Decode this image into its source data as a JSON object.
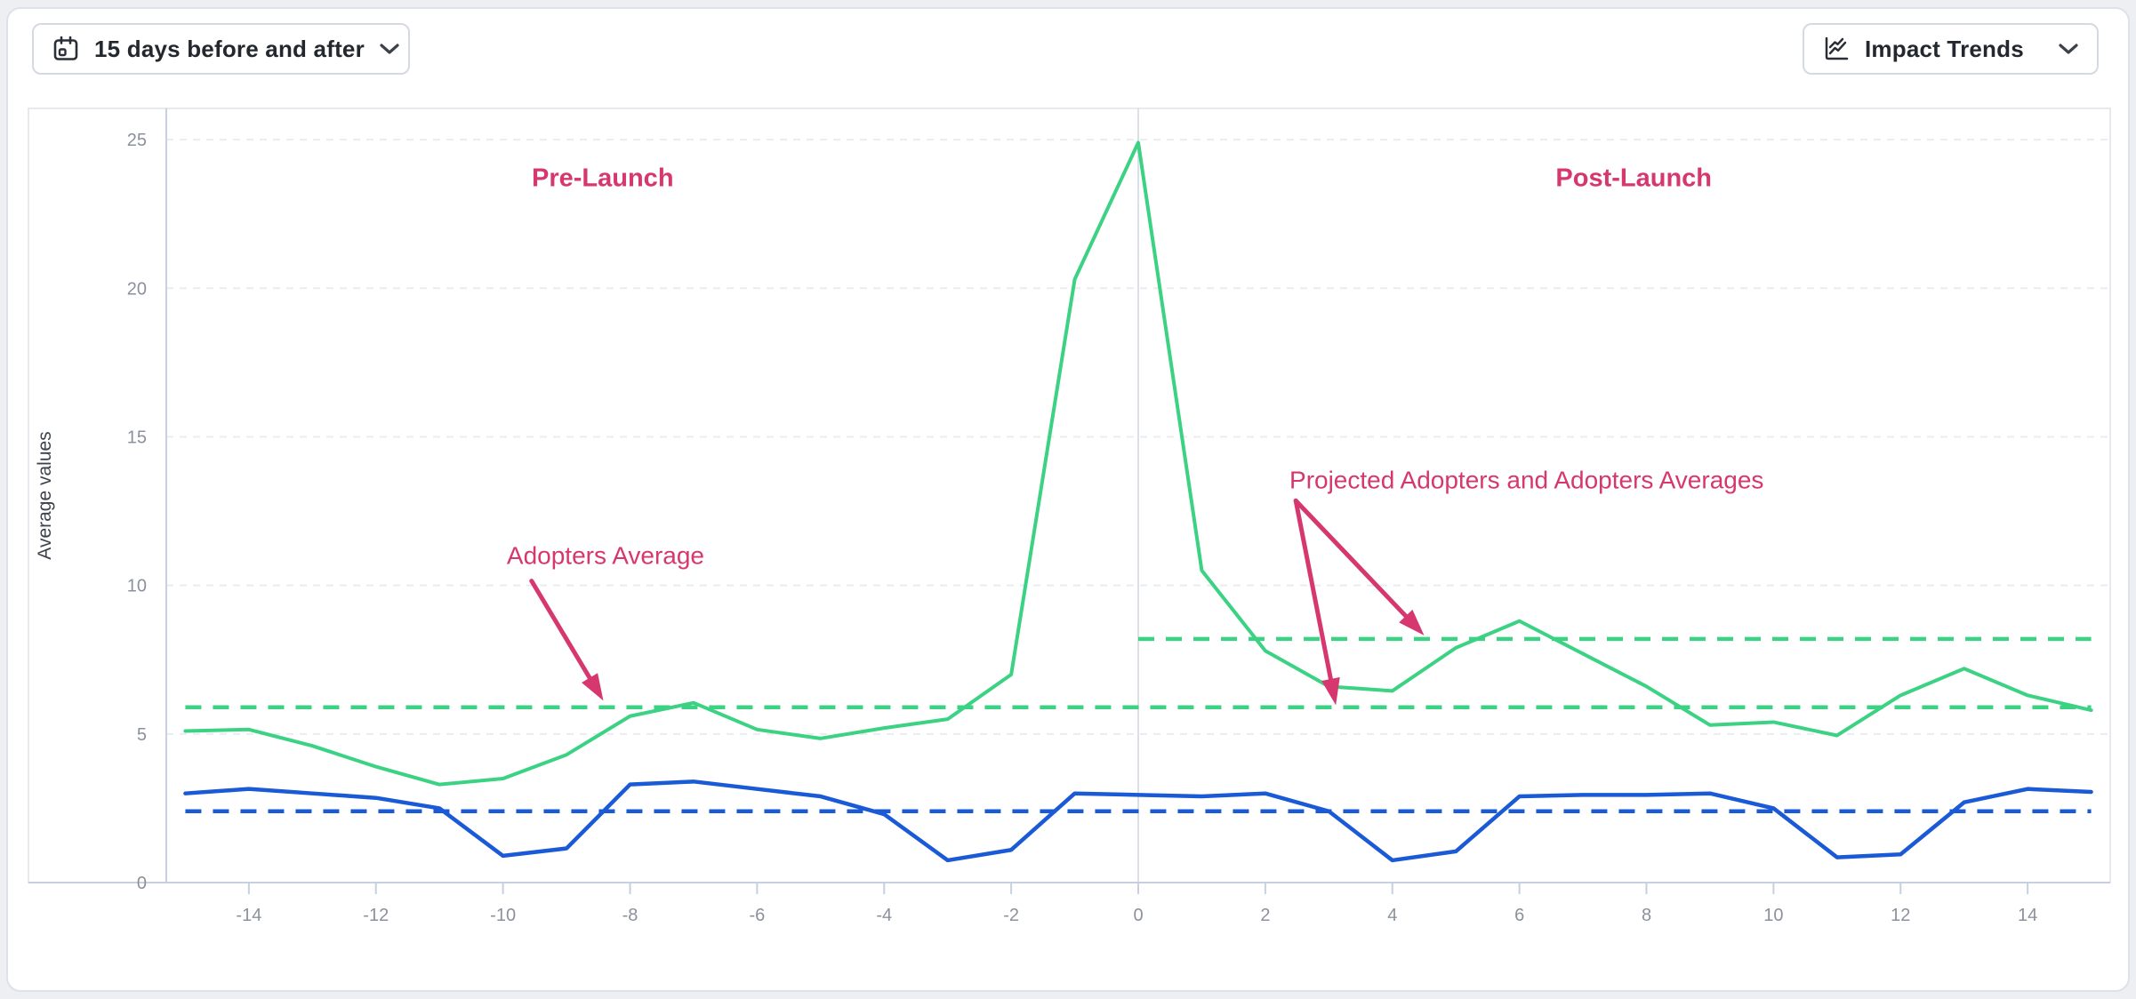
{
  "toolbar": {
    "date_range_button": {
      "label": "15 days before and after",
      "icon": "calendar"
    },
    "trends_button": {
      "label": "Impact Trends",
      "icon": "line-chart"
    }
  },
  "chart_data": {
    "type": "line",
    "title": "",
    "xlabel": "",
    "ylabel": "Average values",
    "xlim": [
      -15.3,
      15.3
    ],
    "ylim": [
      0,
      26.05
    ],
    "xticks": [
      -14,
      -12,
      -10,
      -8,
      -6,
      -4,
      -2,
      0,
      2,
      4,
      6,
      8,
      10,
      12,
      14
    ],
    "yticks": [
      0,
      5,
      10,
      15,
      20,
      25
    ],
    "grid": true,
    "legend": false,
    "x": [
      -15,
      -14,
      -13,
      -12,
      -11,
      -10,
      -9,
      -8,
      -7,
      -6,
      -5,
      -4,
      -3,
      -2,
      -1,
      0,
      1,
      2,
      3,
      4,
      5,
      6,
      7,
      8,
      9,
      10,
      11,
      12,
      13,
      14,
      15
    ],
    "series": [
      {
        "name": "Adopters",
        "color": "#3bd283",
        "values": [
          5.1,
          5.15,
          4.6,
          3.9,
          3.3,
          3.5,
          4.3,
          5.6,
          6.05,
          5.15,
          4.85,
          5.2,
          5.5,
          7.0,
          20.3,
          24.9,
          10.5,
          7.8,
          6.6,
          6.45,
          7.9,
          8.8,
          7.7,
          6.6,
          5.3,
          5.4,
          4.95,
          6.3,
          7.2,
          6.3,
          5.8
        ]
      },
      {
        "name": "Projected Adopters",
        "color": "#1a5ad6",
        "values": [
          3.0,
          3.15,
          3.0,
          2.85,
          2.5,
          0.9,
          1.15,
          3.3,
          3.4,
          3.15,
          2.9,
          2.3,
          0.75,
          1.1,
          3.0,
          2.95,
          2.9,
          3.0,
          2.4,
          0.75,
          1.05,
          2.9,
          2.95,
          2.95,
          3.0,
          2.5,
          0.85,
          0.95,
          2.7,
          3.15,
          3.05
        ]
      }
    ],
    "reference_lines": [
      {
        "name": "adopters-average",
        "value": 5.9,
        "from": -15,
        "to": 15,
        "color": "#3bd283"
      },
      {
        "name": "adopters-average-post-launch",
        "value": 8.2,
        "from": 0,
        "to": 15,
        "color": "#3bd283"
      },
      {
        "name": "projected-adopters-average",
        "value": 2.4,
        "from": -15,
        "to": 15,
        "color": "#1a5ad6"
      }
    ],
    "launch_line_x": 0,
    "annotation_color": "#d6376e",
    "annotations": [
      {
        "id": "pre-launch",
        "text": "Pre-Launch",
        "x": -8.43,
        "y": 23.7,
        "weight": "bold",
        "anchor": "middle",
        "arrows": []
      },
      {
        "id": "post-launch",
        "text": "Post-Launch",
        "x": 7.8,
        "y": 23.7,
        "weight": "bold",
        "anchor": "middle",
        "arrows": []
      },
      {
        "id": "adopters-average",
        "text": "Adopters Average",
        "x": -9.94,
        "y": 11.0,
        "weight": "normal",
        "anchor": "start",
        "arrows": [
          {
            "from": [
              -9.55,
              10.15
            ],
            "to": [
              -8.42,
              6.12
            ]
          }
        ]
      },
      {
        "id": "projected-adopters-and-adopters-averages",
        "text": "Projected Adopters and Adopters Averages",
        "x": 2.38,
        "y": 13.55,
        "weight": "normal",
        "anchor": "start",
        "arrows": [
          {
            "from": [
              2.48,
              12.85
            ],
            "to": [
              4.5,
              8.32
            ]
          },
          {
            "from": [
              2.48,
              12.85
            ],
            "to": [
              3.11,
              5.97
            ]
          }
        ]
      }
    ]
  }
}
